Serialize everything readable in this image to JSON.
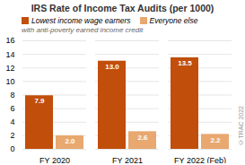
{
  "chart_data": {
    "type": "bar",
    "title": "IRS Rate of Income Tax Audits (per 1000)",
    "subtitle": "with anti-poverty earned income credit",
    "annotations": [
      "©TRAC 2022"
    ],
    "categories": [
      "FY 2020",
      "FY 2021",
      "FY 2022 (Feb)"
    ],
    "series": [
      {
        "name": "Lowest income wage earners",
        "color": "#c14e0a",
        "values": [
          7.9,
          13.0,
          13.5
        ],
        "value_labels": [
          "7.9",
          "13.0",
          "13.5"
        ]
      },
      {
        "name": "Everyone else",
        "color": "#e8a870",
        "values": [
          2.0,
          2.6,
          2.2
        ],
        "value_labels": [
          "2.0",
          "2.6",
          "2.2"
        ]
      }
    ],
    "ylim": [
      0,
      16
    ],
    "yticks": [
      0,
      2,
      4,
      6,
      8,
      10,
      12,
      14,
      16
    ],
    "grid": true,
    "legend": "upper left",
    "data_labels": true
  }
}
